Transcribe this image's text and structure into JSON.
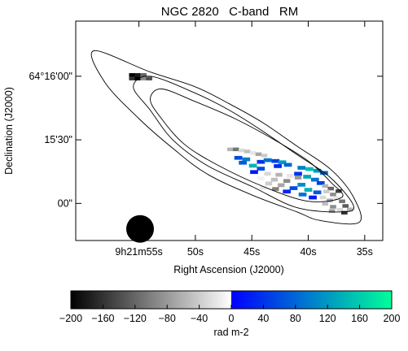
{
  "chart_data": {
    "type": "heatmap",
    "title": "NGC 2820   C-band   RM",
    "xlabel": "Right Ascension (J2000)",
    "ylabel": "Declination (J2000)",
    "x_ticks": [
      {
        "label": "9h21m55s",
        "value": 55
      },
      {
        "label": "50s",
        "value": 50
      },
      {
        "label": "45s",
        "value": 45
      },
      {
        "label": "40s",
        "value": 40
      },
      {
        "label": "35s",
        "value": 35
      }
    ],
    "y_ticks": [
      {
        "label": "64°16'00\"",
        "value": 60
      },
      {
        "label": "15'30\"",
        "value": 30
      },
      {
        "label": "00\"",
        "value": 0
      }
    ],
    "xlim": [
      60.6,
      33.4
    ],
    "ylim": [
      -17.5,
      86
    ],
    "colorbar": {
      "label": "rad m-2",
      "range": [
        -200,
        200
      ],
      "ticks": [
        -200,
        -160,
        -120,
        -80,
        -40,
        0,
        40,
        80,
        120,
        160,
        200
      ],
      "stops": [
        {
          "value": -200,
          "color": "#000000"
        },
        {
          "value": 0,
          "color": "#ffffff"
        },
        {
          "value": 0.01,
          "color": "#0000ff"
        },
        {
          "value": 200,
          "color": "#00ff99"
        }
      ]
    },
    "beam": {
      "ra": 54.9,
      "dec": -12,
      "radius_arcsec": 6.5
    },
    "contours": [
      [
        [
          59,
          72
        ],
        [
          54,
          62
        ],
        [
          50,
          55
        ],
        [
          47,
          47
        ],
        [
          44,
          38
        ],
        [
          41,
          27
        ],
        [
          38,
          16
        ],
        [
          36,
          3
        ],
        [
          35.5,
          -9
        ],
        [
          39,
          -8
        ],
        [
          41,
          -4
        ],
        [
          45,
          4
        ],
        [
          49,
          14
        ],
        [
          52,
          26
        ],
        [
          55,
          40
        ],
        [
          58,
          57
        ]
      ],
      [
        [
          54,
          60
        ],
        [
          50,
          52
        ],
        [
          47,
          44
        ],
        [
          44,
          34
        ],
        [
          41,
          23
        ],
        [
          38,
          12
        ],
        [
          36,
          -1
        ],
        [
          37,
          -4
        ],
        [
          41,
          -2
        ],
        [
          45,
          8
        ],
        [
          49,
          18
        ],
        [
          52,
          30
        ],
        [
          54,
          44
        ],
        [
          55.5,
          55
        ]
      ],
      [
        [
          53,
          54
        ],
        [
          50,
          48
        ],
        [
          46.5,
          40
        ],
        [
          43,
          30
        ],
        [
          40,
          20
        ],
        [
          38,
          10
        ],
        [
          37,
          3
        ],
        [
          40,
          1
        ],
        [
          44,
          8
        ],
        [
          48,
          18
        ],
        [
          51,
          28
        ],
        [
          53,
          40
        ],
        [
          54,
          49
        ]
      ]
    ],
    "rm_pixels": [
      {
        "ra": 55.6,
        "dec": 60.6,
        "w": 0.55,
        "h": 1.7,
        "rm": -200
      },
      {
        "ra": 55.1,
        "dec": 60.6,
        "w": 0.55,
        "h": 1.7,
        "rm": -180
      },
      {
        "ra": 54.6,
        "dec": 60.6,
        "w": 0.55,
        "h": 1.7,
        "rm": -120
      },
      {
        "ra": 55.6,
        "dec": 58.9,
        "w": 0.55,
        "h": 1.7,
        "rm": -160
      },
      {
        "ra": 55.1,
        "dec": 58.9,
        "w": 0.55,
        "h": 1.7,
        "rm": -200
      },
      {
        "ra": 54.6,
        "dec": 58.9,
        "w": 0.55,
        "h": 1.7,
        "rm": -90
      },
      {
        "ra": 54.1,
        "dec": 58.9,
        "w": 0.55,
        "h": 1.7,
        "rm": -140
      },
      {
        "ra": 46.9,
        "dec": 25.5,
        "w": 0.55,
        "h": 1.7,
        "rm": -60
      },
      {
        "ra": 46.4,
        "dec": 25.5,
        "w": 0.55,
        "h": 1.7,
        "rm": -110
      },
      {
        "ra": 45.9,
        "dec": 25.0,
        "w": 0.55,
        "h": 1.7,
        "rm": -30
      },
      {
        "ra": 45.4,
        "dec": 24.5,
        "w": 0.55,
        "h": 1.7,
        "rm": -50
      },
      {
        "ra": 44.9,
        "dec": 23.8,
        "w": 0.55,
        "h": 1.7,
        "rm": -20
      },
      {
        "ra": 44.4,
        "dec": 23.2,
        "w": 0.55,
        "h": 1.7,
        "rm": -70
      },
      {
        "ra": 43.9,
        "dec": 22.6,
        "w": 0.55,
        "h": 1.7,
        "rm": -40
      },
      {
        "ra": 46.2,
        "dec": 21.5,
        "w": 0.7,
        "h": 1.8,
        "rm": 60
      },
      {
        "ra": 45.5,
        "dec": 20.8,
        "w": 0.7,
        "h": 1.8,
        "rm": 100
      },
      {
        "ra": 45.8,
        "dec": 19.2,
        "w": 0.7,
        "h": 1.8,
        "rm": 70
      },
      {
        "ra": 44.9,
        "dec": 17.8,
        "w": 0.7,
        "h": 1.8,
        "rm": 140
      },
      {
        "ra": 44.2,
        "dec": 19.6,
        "w": 0.7,
        "h": 1.8,
        "rm": 40
      },
      {
        "ra": 43.6,
        "dec": 20.4,
        "w": 0.7,
        "h": 1.8,
        "rm": 90
      },
      {
        "ra": 42.9,
        "dec": 20.0,
        "w": 0.7,
        "h": 1.8,
        "rm": 50
      },
      {
        "ra": 42.3,
        "dec": 19.4,
        "w": 0.7,
        "h": 1.8,
        "rm": 120
      },
      {
        "ra": 41.8,
        "dec": 18.2,
        "w": 0.7,
        "h": 1.8,
        "rm": 80
      },
      {
        "ra": 42.7,
        "dec": 17.6,
        "w": 0.7,
        "h": 1.8,
        "rm": 30
      },
      {
        "ra": 44.2,
        "dec": 16.4,
        "w": 0.7,
        "h": 1.8,
        "rm": 60
      },
      {
        "ra": 44.8,
        "dec": 14.8,
        "w": 0.7,
        "h": 1.8,
        "rm": 20
      },
      {
        "ra": 43.6,
        "dec": 14.0,
        "w": 0.6,
        "h": 1.8,
        "rm": -30
      },
      {
        "ra": 42.6,
        "dec": 13.5,
        "w": 0.6,
        "h": 1.8,
        "rm": -60
      },
      {
        "ra": 41.6,
        "dec": 13.0,
        "w": 0.6,
        "h": 1.8,
        "rm": -20
      },
      {
        "ra": 40.9,
        "dec": 12.2,
        "w": 0.6,
        "h": 1.8,
        "rm": -80
      },
      {
        "ra": 44.2,
        "dec": 11.8,
        "w": 0.6,
        "h": 1.8,
        "rm": -10
      },
      {
        "ra": 43.0,
        "dec": 11.2,
        "w": 0.6,
        "h": 1.8,
        "rm": -50
      },
      {
        "ra": 41.9,
        "dec": 10.6,
        "w": 0.6,
        "h": 1.8,
        "rm": -90
      },
      {
        "ra": 43.5,
        "dec": 9.4,
        "w": 0.6,
        "h": 1.8,
        "rm": -40
      },
      {
        "ra": 42.4,
        "dec": 8.6,
        "w": 0.6,
        "h": 1.8,
        "rm": -70
      },
      {
        "ra": 44.0,
        "dec": 7.4,
        "w": 0.6,
        "h": 1.8,
        "rm": -20
      },
      {
        "ra": 42.9,
        "dec": 6.8,
        "w": 0.6,
        "h": 1.8,
        "rm": -100
      },
      {
        "ra": 40.6,
        "dec": 16.8,
        "w": 0.7,
        "h": 1.8,
        "rm": 100
      },
      {
        "ra": 39.9,
        "dec": 16.2,
        "w": 0.7,
        "h": 1.8,
        "rm": 150
      },
      {
        "ra": 39.2,
        "dec": 15.4,
        "w": 0.7,
        "h": 1.8,
        "rm": 120
      },
      {
        "ra": 38.6,
        "dec": 14.4,
        "w": 0.7,
        "h": 1.8,
        "rm": 80
      },
      {
        "ra": 40.9,
        "dec": 14.0,
        "w": 0.7,
        "h": 1.8,
        "rm": 40
      },
      {
        "ra": 40.1,
        "dec": 12.6,
        "w": 0.7,
        "h": 1.8,
        "rm": 130
      },
      {
        "ra": 39.4,
        "dec": 11.2,
        "w": 0.7,
        "h": 1.8,
        "rm": 90
      },
      {
        "ra": 38.9,
        "dec": 9.6,
        "w": 0.7,
        "h": 1.8,
        "rm": 50
      },
      {
        "ra": 40.6,
        "dec": 8.8,
        "w": 0.7,
        "h": 1.8,
        "rm": 110
      },
      {
        "ra": 41.3,
        "dec": 7.2,
        "w": 0.7,
        "h": 1.8,
        "rm": 60
      },
      {
        "ra": 40.0,
        "dec": 6.4,
        "w": 0.7,
        "h": 1.8,
        "rm": 140
      },
      {
        "ra": 39.2,
        "dec": 5.2,
        "w": 0.7,
        "h": 1.8,
        "rm": 70
      },
      {
        "ra": 41.9,
        "dec": 5.6,
        "w": 0.7,
        "h": 1.8,
        "rm": 30
      },
      {
        "ra": 40.5,
        "dec": 4.2,
        "w": 0.7,
        "h": 1.8,
        "rm": 90
      },
      {
        "ra": 39.6,
        "dec": 2.8,
        "w": 0.7,
        "h": 1.8,
        "rm": 20
      },
      {
        "ra": 38.5,
        "dec": 8.2,
        "w": 0.55,
        "h": 1.7,
        "rm": -60
      },
      {
        "ra": 38.0,
        "dec": 7.0,
        "w": 0.55,
        "h": 1.7,
        "rm": -120
      },
      {
        "ra": 38.4,
        "dec": 5.6,
        "w": 0.55,
        "h": 1.7,
        "rm": -40
      },
      {
        "ra": 37.8,
        "dec": 4.2,
        "w": 0.55,
        "h": 1.7,
        "rm": -90
      },
      {
        "ra": 37.3,
        "dec": 5.8,
        "w": 0.55,
        "h": 1.7,
        "rm": -150
      },
      {
        "ra": 38.7,
        "dec": 2.8,
        "w": 0.55,
        "h": 1.7,
        "rm": -30
      },
      {
        "ra": 38.1,
        "dec": 1.4,
        "w": 0.55,
        "h": 1.7,
        "rm": -70
      },
      {
        "ra": 37.5,
        "dec": 2.6,
        "w": 0.55,
        "h": 1.7,
        "rm": -20
      },
      {
        "ra": 37.0,
        "dec": 1.0,
        "w": 0.55,
        "h": 1.7,
        "rm": -110
      },
      {
        "ra": 38.5,
        "dec": -0.2,
        "w": 0.55,
        "h": 1.7,
        "rm": -50
      },
      {
        "ra": 37.8,
        "dec": -1.6,
        "w": 0.55,
        "h": 1.7,
        "rm": -90
      },
      {
        "ra": 37.2,
        "dec": -3.0,
        "w": 0.55,
        "h": 1.7,
        "rm": -30
      },
      {
        "ra": 36.7,
        "dec": -1.2,
        "w": 0.55,
        "h": 1.7,
        "rm": -130
      },
      {
        "ra": 36.3,
        "dec": -2.8,
        "w": 0.55,
        "h": 1.7,
        "rm": -60
      },
      {
        "ra": 36.8,
        "dec": -4.4,
        "w": 0.55,
        "h": 1.7,
        "rm": -160
      },
      {
        "ra": 37.9,
        "dec": -3.6,
        "w": 0.55,
        "h": 1.7,
        "rm": -80
      }
    ]
  }
}
